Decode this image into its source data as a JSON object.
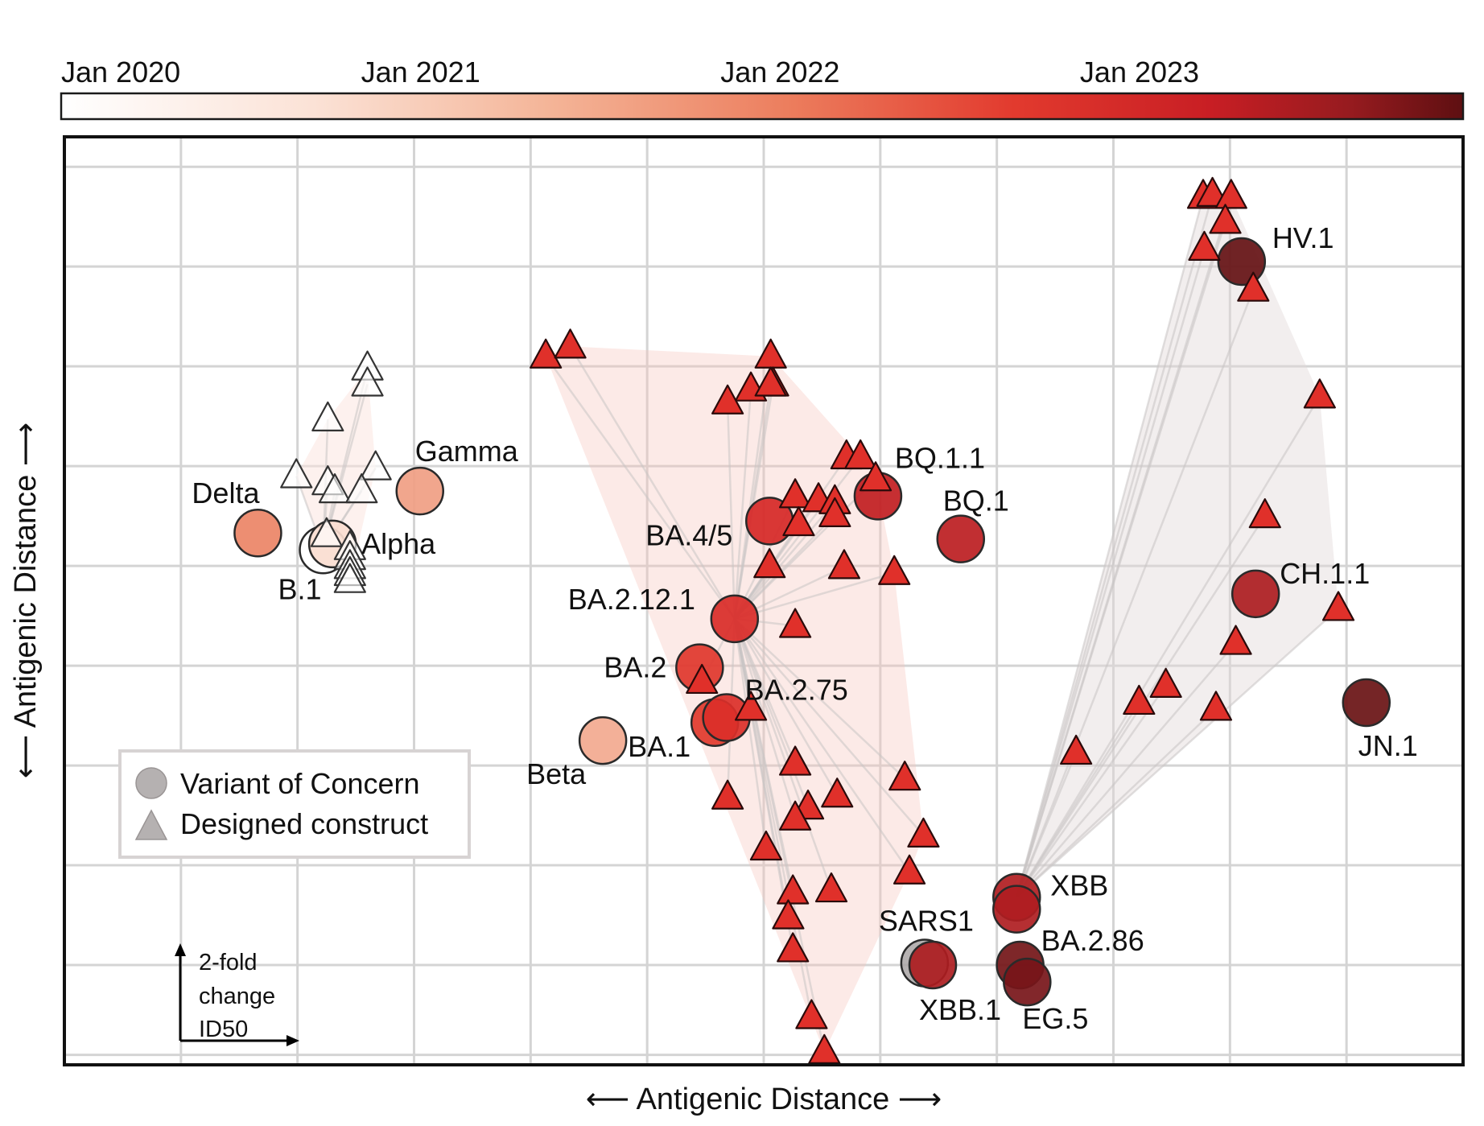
{
  "chart_data": {
    "type": "scatter",
    "xlabel": "⟵ Antigenic Distance ⟶",
    "ylabel": "⟵ Antigenic Distance ⟶",
    "xlim": [
      0,
      12
    ],
    "ylim": [
      0,
      9.3
    ],
    "colorbar": {
      "ticks": [
        "Jan 2020",
        "Jan 2021",
        "Jan 2022",
        "Jan 2023"
      ],
      "tick_values": [
        0,
        1,
        2,
        3
      ],
      "range": [
        0,
        3.9
      ],
      "colors": [
        "#ffffff",
        "#f7c8b2",
        "#ec8466",
        "#e23a2e",
        "#d11e22",
        "#8c1b1f",
        "#5e0f11"
      ]
    },
    "legend": {
      "position": "bottom-left",
      "entries": [
        {
          "label": "Variant of Concern",
          "marker": "circle",
          "color": "#b5b1b1"
        },
        {
          "label": "Designed construct",
          "marker": "triangle",
          "color": "#b5b1b1"
        }
      ]
    },
    "scale_bar": {
      "label_lines": [
        "2-fold",
        "change",
        "ID50"
      ],
      "length": 1
    },
    "variants": [
      {
        "name": "B.1",
        "x": 2.22,
        "y": 5.16,
        "time": 0.0
      },
      {
        "name": "Alpha",
        "x": 2.3,
        "y": 5.22,
        "time": 0.4
      },
      {
        "name": "Delta",
        "x": 1.66,
        "y": 5.33,
        "time": 1.3
      },
      {
        "name": "Gamma",
        "x": 3.05,
        "y": 5.75,
        "time": 1.05
      },
      {
        "name": "Beta",
        "x": 4.62,
        "y": 3.25,
        "time": 0.95
      },
      {
        "name": "BA.1",
        "x": 5.58,
        "y": 3.43,
        "time": 2.0
      },
      {
        "name": "BA.2",
        "x": 5.45,
        "y": 3.98,
        "time": 2.05
      },
      {
        "name": "BA.2.75",
        "x": 5.68,
        "y": 3.48,
        "time": 2.2
      },
      {
        "name": "BA.2.12.1",
        "x": 5.75,
        "y": 4.47,
        "time": 2.3
      },
      {
        "name": "BA.4/5",
        "x": 6.05,
        "y": 5.45,
        "time": 2.4
      },
      {
        "name": "BQ.1.1",
        "x": 6.98,
        "y": 5.7,
        "time": 2.75
      },
      {
        "name": "BQ.1",
        "x": 7.69,
        "y": 5.27,
        "time": 2.8
      },
      {
        "name": "SARS1",
        "x": 7.38,
        "y": 1.02,
        "time": -1
      },
      {
        "name": "XBB.1",
        "x": 7.45,
        "y": 1.0,
        "time": 2.95
      },
      {
        "name": "XBB",
        "x": 8.17,
        "y": 1.68,
        "time": 2.9
      },
      {
        "name": "XBB (2)",
        "x": 8.17,
        "y": 1.56,
        "time": 2.92
      },
      {
        "name": "BA.2.86",
        "x": 8.2,
        "y": 1.0,
        "time": 3.6
      },
      {
        "name": "EG.5",
        "x": 8.26,
        "y": 0.83,
        "time": 3.55
      },
      {
        "name": "HV.1",
        "x": 10.1,
        "y": 8.05,
        "time": 3.8
      },
      {
        "name": "CH.1.1",
        "x": 10.22,
        "y": 4.72,
        "time": 2.95
      },
      {
        "name": "JN.1",
        "x": 11.17,
        "y": 3.63,
        "time": 3.75
      }
    ],
    "constructs": [
      {
        "group": "early",
        "x": 2.6,
        "y": 6.98,
        "time": 0.0
      },
      {
        "group": "early",
        "x": 2.6,
        "y": 6.82,
        "time": 0.0
      },
      {
        "group": "early",
        "x": 2.26,
        "y": 6.47,
        "time": 0.0
      },
      {
        "group": "early",
        "x": 2.67,
        "y": 5.98,
        "time": 0.0
      },
      {
        "group": "early",
        "x": 1.99,
        "y": 5.9,
        "time": 0.0
      },
      {
        "group": "early",
        "x": 2.26,
        "y": 5.83,
        "time": 0.0
      },
      {
        "group": "early",
        "x": 2.32,
        "y": 5.75,
        "time": 0.0
      },
      {
        "group": "early",
        "x": 2.55,
        "y": 5.75,
        "time": 0.0
      },
      {
        "group": "early",
        "x": 2.25,
        "y": 5.31,
        "time": 0.0
      },
      {
        "group": "early",
        "x": 2.45,
        "y": 5.18,
        "time": 0.0
      },
      {
        "group": "early",
        "x": 2.45,
        "y": 5.08,
        "time": 0.0
      },
      {
        "group": "early",
        "x": 2.45,
        "y": 4.99,
        "time": 0.0
      },
      {
        "group": "early",
        "x": 2.45,
        "y": 4.92,
        "time": 0.0
      },
      {
        "group": "early",
        "x": 2.45,
        "y": 4.85,
        "time": 0.0
      },
      {
        "group": "omicron",
        "x": 4.13,
        "y": 7.1,
        "time": 2.6
      },
      {
        "group": "omicron",
        "x": 4.34,
        "y": 7.2,
        "time": 2.6
      },
      {
        "group": "omicron",
        "x": 6.06,
        "y": 7.1,
        "time": 2.6
      },
      {
        "group": "omicron",
        "x": 6.08,
        "y": 6.82,
        "time": 2.6
      },
      {
        "group": "omicron",
        "x": 5.89,
        "y": 6.77,
        "time": 2.6
      },
      {
        "group": "omicron",
        "x": 5.69,
        "y": 6.64,
        "time": 2.6
      },
      {
        "group": "omicron",
        "x": 6.06,
        "y": 6.82,
        "time": 2.6
      },
      {
        "group": "omicron",
        "x": 6.71,
        "y": 6.09,
        "time": 2.6
      },
      {
        "group": "omicron",
        "x": 6.83,
        "y": 6.09,
        "time": 2.6
      },
      {
        "group": "omicron",
        "x": 6.96,
        "y": 5.87,
        "time": 2.6
      },
      {
        "group": "omicron",
        "x": 6.27,
        "y": 5.7,
        "time": 2.6
      },
      {
        "group": "omicron",
        "x": 6.47,
        "y": 5.66,
        "time": 2.6
      },
      {
        "group": "omicron",
        "x": 6.61,
        "y": 5.64,
        "time": 2.6
      },
      {
        "group": "omicron",
        "x": 6.61,
        "y": 5.51,
        "time": 2.6
      },
      {
        "group": "omicron",
        "x": 6.3,
        "y": 5.42,
        "time": 2.6
      },
      {
        "group": "omicron",
        "x": 6.05,
        "y": 5.0,
        "time": 2.6
      },
      {
        "group": "omicron",
        "x": 6.69,
        "y": 4.99,
        "time": 2.6
      },
      {
        "group": "omicron",
        "x": 7.12,
        "y": 4.93,
        "time": 2.6
      },
      {
        "group": "omicron",
        "x": 6.27,
        "y": 4.4,
        "time": 2.6
      },
      {
        "group": "omicron",
        "x": 5.47,
        "y": 3.84,
        "time": 2.6
      },
      {
        "group": "omicron",
        "x": 5.89,
        "y": 3.57,
        "time": 2.6
      },
      {
        "group": "omicron",
        "x": 6.27,
        "y": 3.02,
        "time": 2.6
      },
      {
        "group": "omicron",
        "x": 5.69,
        "y": 2.68,
        "time": 2.6
      },
      {
        "group": "omicron",
        "x": 6.38,
        "y": 2.58,
        "time": 2.6
      },
      {
        "group": "omicron",
        "x": 6.63,
        "y": 2.7,
        "time": 2.6
      },
      {
        "group": "omicron",
        "x": 7.21,
        "y": 2.87,
        "time": 2.6
      },
      {
        "group": "omicron",
        "x": 6.27,
        "y": 2.47,
        "time": 2.6
      },
      {
        "group": "omicron",
        "x": 6.02,
        "y": 2.17,
        "time": 2.6
      },
      {
        "group": "omicron",
        "x": 7.37,
        "y": 2.3,
        "time": 2.6
      },
      {
        "group": "omicron",
        "x": 7.25,
        "y": 1.93,
        "time": 2.6
      },
      {
        "group": "omicron",
        "x": 6.25,
        "y": 1.73,
        "time": 2.6
      },
      {
        "group": "omicron",
        "x": 6.58,
        "y": 1.75,
        "time": 2.6
      },
      {
        "group": "omicron",
        "x": 6.21,
        "y": 1.48,
        "time": 2.6
      },
      {
        "group": "omicron",
        "x": 6.25,
        "y": 1.15,
        "time": 2.6
      },
      {
        "group": "omicron",
        "x": 6.41,
        "y": 0.48,
        "time": 2.6
      },
      {
        "group": "omicron",
        "x": 6.52,
        "y": 0.13,
        "time": 2.6
      },
      {
        "group": "xbb",
        "x": 9.77,
        "y": 8.7,
        "time": 2.6
      },
      {
        "group": "xbb",
        "x": 9.85,
        "y": 8.72,
        "time": 2.6
      },
      {
        "group": "xbb",
        "x": 10.01,
        "y": 8.7,
        "time": 2.6
      },
      {
        "group": "xbb",
        "x": 9.96,
        "y": 8.45,
        "time": 2.6
      },
      {
        "group": "xbb",
        "x": 9.78,
        "y": 8.18,
        "time": 2.6
      },
      {
        "group": "xbb",
        "x": 10.2,
        "y": 7.77,
        "time": 2.6
      },
      {
        "group": "xbb",
        "x": 10.77,
        "y": 6.7,
        "time": 2.6
      },
      {
        "group": "xbb",
        "x": 10.3,
        "y": 5.5,
        "time": 2.6
      },
      {
        "group": "xbb",
        "x": 10.93,
        "y": 4.57,
        "time": 2.6
      },
      {
        "group": "xbb",
        "x": 10.05,
        "y": 4.23,
        "time": 2.6
      },
      {
        "group": "xbb",
        "x": 9.45,
        "y": 3.8,
        "time": 2.6
      },
      {
        "group": "xbb",
        "x": 9.22,
        "y": 3.63,
        "time": 2.6
      },
      {
        "group": "xbb",
        "x": 9.88,
        "y": 3.57,
        "time": 2.6
      },
      {
        "group": "xbb",
        "x": 8.68,
        "y": 3.13,
        "time": 2.6
      }
    ]
  }
}
